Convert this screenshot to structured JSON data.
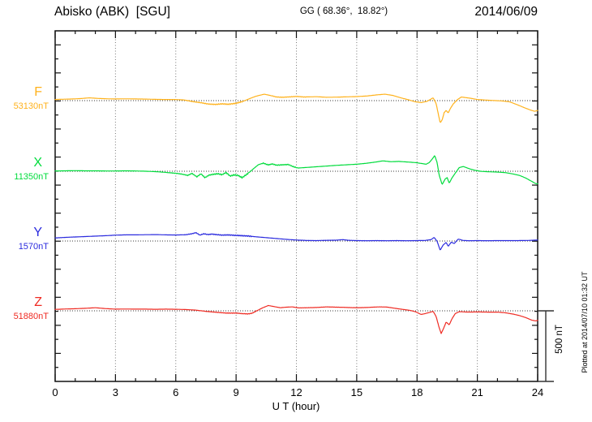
{
  "header": {
    "station_title": "Abisko (ABK)  [SGU]",
    "coordinates": "GG ( 68.36°,  18.82°)",
    "date": "2014/06/09"
  },
  "axis": {
    "x_label": "U T (hour)",
    "x_ticks": [
      {
        "h": 0,
        "label": "0"
      },
      {
        "h": 3,
        "label": "3"
      },
      {
        "h": 6,
        "label": "6"
      },
      {
        "h": 9,
        "label": "9"
      },
      {
        "h": 12,
        "label": "12"
      },
      {
        "h": 15,
        "label": "15"
      },
      {
        "h": 18,
        "label": "18"
      },
      {
        "h": 21,
        "label": "21"
      },
      {
        "h": 24,
        "label": "24"
      }
    ]
  },
  "scale_bar": {
    "label": "500 nT",
    "span_nT": 500
  },
  "footer": {
    "plotted_note": "Plotted at 2014/07/10 01:32 UT"
  },
  "chart_data": {
    "type": "line",
    "title": "Abisko (ABK) [SGU] magnetogram",
    "subtitle": "GG ( 68.36°, 18.82°)",
    "date": "2014/06/09",
    "xlabel": "U T (hour)",
    "x_range": [
      0,
      24
    ],
    "grid_hours": [
      3,
      6,
      9,
      12,
      15,
      18,
      21
    ],
    "y_unit": "nT",
    "nT_per_division": 500,
    "legend_position": "left",
    "grid": "dotted",
    "series": [
      {
        "name": "F",
        "baseline_label": "53130nT",
        "baseline_nT": 53130,
        "color": "#FFB21C",
        "noise_ranges": [
          [
            6.5,
            9.3,
            7
          ],
          [
            10.8,
            12.5,
            3
          ]
        ],
        "points": [
          [
            0,
            8
          ],
          [
            0.4,
            10
          ],
          [
            0.9,
            12
          ],
          [
            1.3,
            15
          ],
          [
            1.7,
            20
          ],
          [
            2.1,
            16
          ],
          [
            2.6,
            13
          ],
          [
            3,
            12
          ],
          [
            3.5,
            13
          ],
          [
            4,
            12
          ],
          [
            4.5,
            11
          ],
          [
            5,
            9
          ],
          [
            5.5,
            8
          ],
          [
            6,
            8
          ],
          [
            6.4,
            5
          ],
          [
            6.7,
            -3
          ],
          [
            7,
            -10
          ],
          [
            7.3,
            -16
          ],
          [
            7.6,
            -24
          ],
          [
            8,
            -27
          ],
          [
            8.3,
            -23
          ],
          [
            8.6,
            -26
          ],
          [
            9,
            -19
          ],
          [
            9.2,
            -11
          ],
          [
            9.4,
            -2
          ],
          [
            9.7,
            16
          ],
          [
            10,
            32
          ],
          [
            10.4,
            46
          ],
          [
            10.7,
            37
          ],
          [
            11,
            26
          ],
          [
            11.3,
            24
          ],
          [
            11.7,
            27
          ],
          [
            12,
            30
          ],
          [
            12.4,
            26
          ],
          [
            13,
            28
          ],
          [
            13.5,
            24
          ],
          [
            14,
            25
          ],
          [
            14.5,
            27
          ],
          [
            15,
            29
          ],
          [
            15.5,
            33
          ],
          [
            16,
            41
          ],
          [
            16.4,
            46
          ],
          [
            16.8,
            37
          ],
          [
            17.2,
            20
          ],
          [
            17.6,
            5
          ],
          [
            17.9,
            -8
          ],
          [
            18.2,
            -14
          ],
          [
            18.5,
            -5
          ],
          [
            18.7,
            12
          ],
          [
            18.8,
            20
          ],
          [
            18.95,
            -20
          ],
          [
            19.05,
            -90
          ],
          [
            19.15,
            -158
          ],
          [
            19.25,
            -138
          ],
          [
            19.35,
            -85
          ],
          [
            19.45,
            -70
          ],
          [
            19.55,
            -88
          ],
          [
            19.65,
            -58
          ],
          [
            19.8,
            -24
          ],
          [
            20,
            6
          ],
          [
            20.2,
            26
          ],
          [
            20.45,
            21
          ],
          [
            20.7,
            16
          ],
          [
            21,
            8
          ],
          [
            21.4,
            4
          ],
          [
            21.8,
            1
          ],
          [
            22.2,
            -2
          ],
          [
            22.6,
            -8
          ],
          [
            23,
            -30
          ],
          [
            23.3,
            -48
          ],
          [
            23.6,
            -65
          ],
          [
            23.85,
            -76
          ],
          [
            24,
            -70
          ]
        ]
      },
      {
        "name": "X",
        "baseline_label": "11350nT",
        "baseline_nT": 11350,
        "color": "#00DC3C",
        "noise_ranges": [
          [
            5.5,
            9.6,
            9
          ],
          [
            10.3,
            12,
            5
          ]
        ],
        "points": [
          [
            0,
            2
          ],
          [
            0.5,
            3
          ],
          [
            1,
            4
          ],
          [
            1.5,
            3
          ],
          [
            2,
            3
          ],
          [
            2.5,
            2
          ],
          [
            3,
            2
          ],
          [
            3.5,
            3
          ],
          [
            4,
            2
          ],
          [
            4.5,
            0
          ],
          [
            5,
            -3
          ],
          [
            5.4,
            -7
          ],
          [
            5.8,
            -12
          ],
          [
            6.1,
            -16
          ],
          [
            6.35,
            -22
          ],
          [
            6.6,
            -30
          ],
          [
            6.8,
            -15
          ],
          [
            7.05,
            -40
          ],
          [
            7.25,
            -18
          ],
          [
            7.45,
            -46
          ],
          [
            7.65,
            -28
          ],
          [
            7.85,
            -22
          ],
          [
            8.1,
            -18
          ],
          [
            8.3,
            -25
          ],
          [
            8.5,
            -9
          ],
          [
            8.7,
            -34
          ],
          [
            8.9,
            -26
          ],
          [
            9.1,
            -30
          ],
          [
            9.3,
            -46
          ],
          [
            9.5,
            -25
          ],
          [
            9.7,
            -3
          ],
          [
            9.9,
            22
          ],
          [
            10.1,
            46
          ],
          [
            10.35,
            58
          ],
          [
            10.6,
            45
          ],
          [
            10.8,
            52
          ],
          [
            11,
            43
          ],
          [
            11.3,
            46
          ],
          [
            11.6,
            48
          ],
          [
            11.85,
            32
          ],
          [
            12.1,
            23
          ],
          [
            12.5,
            27
          ],
          [
            13,
            32
          ],
          [
            13.5,
            37
          ],
          [
            14,
            42
          ],
          [
            14.5,
            46
          ],
          [
            15,
            50
          ],
          [
            15.5,
            57
          ],
          [
            16,
            67
          ],
          [
            16.3,
            74
          ],
          [
            16.7,
            68
          ],
          [
            17.1,
            70
          ],
          [
            17.5,
            66
          ],
          [
            17.9,
            62
          ],
          [
            18.2,
            56
          ],
          [
            18.45,
            50
          ],
          [
            18.6,
            61
          ],
          [
            18.75,
            86
          ],
          [
            18.88,
            112
          ],
          [
            19,
            62
          ],
          [
            19.1,
            -28
          ],
          [
            19.25,
            -95
          ],
          [
            19.4,
            -55
          ],
          [
            19.5,
            -46
          ],
          [
            19.6,
            -85
          ],
          [
            19.75,
            -45
          ],
          [
            19.9,
            -14
          ],
          [
            20.1,
            26
          ],
          [
            20.3,
            34
          ],
          [
            20.6,
            18
          ],
          [
            20.9,
            6
          ],
          [
            21.2,
            -1
          ],
          [
            21.6,
            -4
          ],
          [
            22,
            -6
          ],
          [
            22.4,
            -10
          ],
          [
            22.8,
            -20
          ],
          [
            23.1,
            -30
          ],
          [
            23.4,
            -48
          ],
          [
            23.7,
            -72
          ],
          [
            23.9,
            -88
          ],
          [
            24,
            -90
          ]
        ]
      },
      {
        "name": "Y",
        "baseline_label": "1570nT",
        "baseline_nT": 1570,
        "color": "#2B2BDE",
        "noise_ranges": [
          [
            0,
            6,
            1.5
          ],
          [
            6.4,
            9.8,
            7
          ],
          [
            12,
            18.5,
            1.5
          ]
        ],
        "points": [
          [
            0,
            22
          ],
          [
            0.5,
            26
          ],
          [
            1,
            29
          ],
          [
            1.5,
            32
          ],
          [
            2,
            35
          ],
          [
            2.5,
            38
          ],
          [
            3,
            42
          ],
          [
            3.5,
            44
          ],
          [
            4,
            44
          ],
          [
            4.5,
            45
          ],
          [
            5,
            46
          ],
          [
            5.5,
            44
          ],
          [
            6,
            43
          ],
          [
            6.5,
            45
          ],
          [
            6.8,
            52
          ],
          [
            7,
            60
          ],
          [
            7.2,
            42
          ],
          [
            7.4,
            52
          ],
          [
            7.6,
            46
          ],
          [
            7.8,
            50
          ],
          [
            8,
            46
          ],
          [
            8.3,
            42
          ],
          [
            8.6,
            44
          ],
          [
            9,
            40
          ],
          [
            9.3,
            38
          ],
          [
            9.6,
            36
          ],
          [
            10,
            30
          ],
          [
            10.5,
            24
          ],
          [
            11,
            18
          ],
          [
            11.5,
            12
          ],
          [
            12,
            7
          ],
          [
            12.5,
            4
          ],
          [
            13,
            3
          ],
          [
            13.5,
            5
          ],
          [
            14,
            6
          ],
          [
            14.3,
            10
          ],
          [
            14.6,
            5
          ],
          [
            15,
            3
          ],
          [
            15.5,
            2
          ],
          [
            16,
            3
          ],
          [
            16.5,
            2
          ],
          [
            17,
            3
          ],
          [
            17.5,
            2
          ],
          [
            18,
            3
          ],
          [
            18.4,
            4
          ],
          [
            18.7,
            10
          ],
          [
            18.85,
            26
          ],
          [
            19,
            -2
          ],
          [
            19.15,
            -66
          ],
          [
            19.3,
            -28
          ],
          [
            19.45,
            -10
          ],
          [
            19.55,
            -38
          ],
          [
            19.7,
            -8
          ],
          [
            19.85,
            -18
          ],
          [
            20.05,
            14
          ],
          [
            20.3,
            4
          ],
          [
            20.6,
            2
          ],
          [
            21,
            3
          ],
          [
            21.5,
            2
          ],
          [
            22,
            3
          ],
          [
            22.5,
            3
          ],
          [
            23,
            3
          ],
          [
            23.5,
            4
          ],
          [
            24,
            7
          ]
        ]
      },
      {
        "name": "Z",
        "baseline_label": "51880nT",
        "baseline_nT": 51880,
        "color": "#EF2B23",
        "noise_ranges": [
          [
            7.5,
            10,
            4
          ],
          [
            12,
            17,
            1.5
          ]
        ],
        "points": [
          [
            0,
            10
          ],
          [
            0.5,
            13
          ],
          [
            1,
            15
          ],
          [
            1.5,
            18
          ],
          [
            2,
            22
          ],
          [
            2.5,
            16
          ],
          [
            3,
            12
          ],
          [
            3.5,
            13
          ],
          [
            4,
            12
          ],
          [
            4.5,
            12
          ],
          [
            5,
            11
          ],
          [
            5.5,
            12
          ],
          [
            6,
            11
          ],
          [
            6.5,
            9
          ],
          [
            7,
            5
          ],
          [
            7.5,
            -4
          ],
          [
            8,
            -10
          ],
          [
            8.5,
            -16
          ],
          [
            9,
            -16
          ],
          [
            9.3,
            -20
          ],
          [
            9.6,
            -22
          ],
          [
            9.8,
            -17
          ],
          [
            10,
            -2
          ],
          [
            10.3,
            20
          ],
          [
            10.6,
            38
          ],
          [
            10.9,
            30
          ],
          [
            11.2,
            22
          ],
          [
            11.5,
            26
          ],
          [
            11.8,
            28
          ],
          [
            12.1,
            21
          ],
          [
            12.5,
            22
          ],
          [
            13,
            24
          ],
          [
            13.5,
            28
          ],
          [
            14,
            26
          ],
          [
            14.5,
            24
          ],
          [
            15,
            22
          ],
          [
            15.5,
            24
          ],
          [
            16.1,
            28
          ],
          [
            16.5,
            27
          ],
          [
            16.9,
            18
          ],
          [
            17.3,
            10
          ],
          [
            17.7,
            2
          ],
          [
            17.95,
            -8
          ],
          [
            18.2,
            -26
          ],
          [
            18.4,
            -20
          ],
          [
            18.6,
            -12
          ],
          [
            18.8,
            -4
          ],
          [
            18.95,
            -40
          ],
          [
            19.1,
            -120
          ],
          [
            19.2,
            -162
          ],
          [
            19.3,
            -132
          ],
          [
            19.45,
            -80
          ],
          [
            19.6,
            -100
          ],
          [
            19.75,
            -54
          ],
          [
            19.9,
            -20
          ],
          [
            20.1,
            -6
          ],
          [
            20.5,
            -9
          ],
          [
            21,
            -8
          ],
          [
            21.5,
            -9
          ],
          [
            22,
            -9
          ],
          [
            22.4,
            -14
          ],
          [
            22.8,
            -24
          ],
          [
            23.1,
            -34
          ],
          [
            23.4,
            -48
          ],
          [
            23.7,
            -66
          ],
          [
            23.9,
            -72
          ],
          [
            24,
            -68
          ]
        ]
      }
    ]
  }
}
